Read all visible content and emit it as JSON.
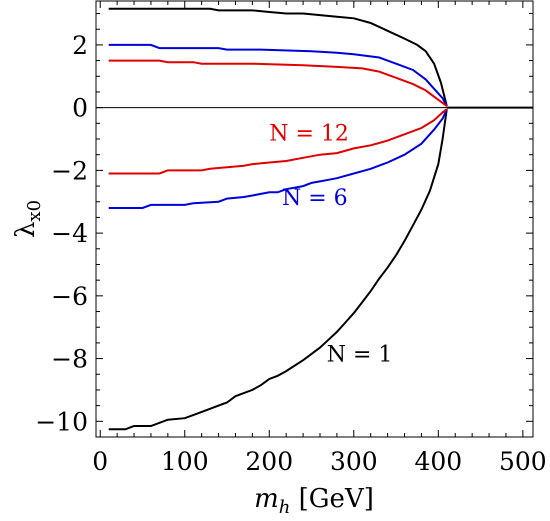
{
  "chart_data": {
    "type": "line",
    "title": "",
    "xlabel": "m_h [GeV]",
    "xlabel_main": "m",
    "xlabel_sub": "h",
    "xlabel_unit": " [GeV]",
    "ylabel": "λ_x0",
    "ylabel_main": "λ",
    "ylabel_sub": "x0",
    "xlim": [
      -5,
      512
    ],
    "ylim": [
      -10.5,
      3.4
    ],
    "x_ticks": [
      0,
      100,
      200,
      300,
      400,
      500
    ],
    "y_ticks": [
      2,
      0,
      -2,
      -4,
      -6,
      -8,
      -10
    ],
    "x_tick_labels": [
      "0",
      "100",
      "200",
      "300",
      "400",
      "500"
    ],
    "y_tick_labels": [
      "2",
      "0",
      "−2",
      "−4",
      "−6",
      "−8",
      "−10"
    ],
    "grid": false,
    "legend": "none",
    "zero_line": true,
    "series": [
      {
        "name": "N = 1",
        "color": "#000000",
        "upper": [
          [
            10,
            3.15
          ],
          [
            30,
            3.15
          ],
          [
            60,
            3.15
          ],
          [
            100,
            3.15
          ],
          [
            130,
            3.15
          ],
          [
            140,
            3.1
          ],
          [
            160,
            3.1
          ],
          [
            180,
            3.1
          ],
          [
            200,
            3.05
          ],
          [
            220,
            3.0
          ],
          [
            240,
            3.0
          ],
          [
            260,
            2.95
          ],
          [
            280,
            2.9
          ],
          [
            300,
            2.85
          ],
          [
            320,
            2.7
          ],
          [
            340,
            2.45
          ],
          [
            360,
            2.2
          ],
          [
            375,
            2.0
          ],
          [
            385,
            1.8
          ],
          [
            395,
            1.4
          ],
          [
            403,
            0.8
          ],
          [
            410,
            0.05
          ]
        ],
        "lower": [
          [
            10,
            -10.25
          ],
          [
            30,
            -10.25
          ],
          [
            40,
            -10.15
          ],
          [
            60,
            -10.15
          ],
          [
            80,
            -9.95
          ],
          [
            100,
            -9.9
          ],
          [
            120,
            -9.7
          ],
          [
            140,
            -9.5
          ],
          [
            150,
            -9.4
          ],
          [
            160,
            -9.2
          ],
          [
            180,
            -9.0
          ],
          [
            190,
            -8.85
          ],
          [
            200,
            -8.65
          ],
          [
            210,
            -8.55
          ],
          [
            220,
            -8.4
          ],
          [
            240,
            -8.05
          ],
          [
            250,
            -7.85
          ],
          [
            260,
            -7.65
          ],
          [
            270,
            -7.4
          ],
          [
            280,
            -7.15
          ],
          [
            290,
            -6.85
          ],
          [
            300,
            -6.55
          ],
          [
            310,
            -6.2
          ],
          [
            320,
            -5.85
          ],
          [
            330,
            -5.45
          ],
          [
            340,
            -5.1
          ],
          [
            350,
            -4.7
          ],
          [
            360,
            -4.25
          ],
          [
            370,
            -3.75
          ],
          [
            380,
            -3.25
          ],
          [
            390,
            -2.65
          ],
          [
            400,
            -1.8
          ],
          [
            405,
            -1.0
          ],
          [
            410,
            -0.05
          ]
        ]
      },
      {
        "name": "N = 6",
        "color": "#0000dd",
        "upper": [
          [
            10,
            2.0
          ],
          [
            60,
            2.0
          ],
          [
            70,
            1.9
          ],
          [
            100,
            1.9
          ],
          [
            140,
            1.9
          ],
          [
            150,
            1.85
          ],
          [
            190,
            1.85
          ],
          [
            250,
            1.8
          ],
          [
            280,
            1.75
          ],
          [
            300,
            1.7
          ],
          [
            330,
            1.6
          ],
          [
            350,
            1.4
          ],
          [
            370,
            1.2
          ],
          [
            385,
            0.9
          ],
          [
            395,
            0.6
          ],
          [
            405,
            0.3
          ],
          [
            410,
            0.05
          ]
        ],
        "lower": [
          [
            10,
            -3.2
          ],
          [
            50,
            -3.2
          ],
          [
            60,
            -3.1
          ],
          [
            100,
            -3.1
          ],
          [
            110,
            -3.05
          ],
          [
            140,
            -3.0
          ],
          [
            150,
            -2.9
          ],
          [
            170,
            -2.85
          ],
          [
            180,
            -2.8
          ],
          [
            200,
            -2.7
          ],
          [
            210,
            -2.7
          ],
          [
            220,
            -2.6
          ],
          [
            240,
            -2.5
          ],
          [
            250,
            -2.4
          ],
          [
            260,
            -2.35
          ],
          [
            270,
            -2.3
          ],
          [
            280,
            -2.25
          ],
          [
            300,
            -2.1
          ],
          [
            320,
            -1.95
          ],
          [
            340,
            -1.75
          ],
          [
            360,
            -1.5
          ],
          [
            380,
            -1.15
          ],
          [
            395,
            -0.7
          ],
          [
            405,
            -0.35
          ],
          [
            410,
            -0.05
          ]
        ]
      },
      {
        "name": "N = 12",
        "color": "#e00000",
        "upper": [
          [
            10,
            1.5
          ],
          [
            70,
            1.5
          ],
          [
            80,
            1.45
          ],
          [
            110,
            1.45
          ],
          [
            120,
            1.4
          ],
          [
            180,
            1.4
          ],
          [
            240,
            1.35
          ],
          [
            280,
            1.3
          ],
          [
            310,
            1.25
          ],
          [
            330,
            1.15
          ],
          [
            350,
            0.95
          ],
          [
            370,
            0.75
          ],
          [
            385,
            0.55
          ],
          [
            395,
            0.35
          ],
          [
            405,
            0.15
          ],
          [
            410,
            0.05
          ]
        ],
        "lower": [
          [
            10,
            -2.1
          ],
          [
            70,
            -2.1
          ],
          [
            80,
            -2.0
          ],
          [
            120,
            -2.0
          ],
          [
            130,
            -1.95
          ],
          [
            150,
            -1.9
          ],
          [
            170,
            -1.85
          ],
          [
            180,
            -1.8
          ],
          [
            200,
            -1.75
          ],
          [
            220,
            -1.7
          ],
          [
            240,
            -1.6
          ],
          [
            260,
            -1.5
          ],
          [
            280,
            -1.45
          ],
          [
            300,
            -1.3
          ],
          [
            320,
            -1.2
          ],
          [
            340,
            -1.05
          ],
          [
            360,
            -0.85
          ],
          [
            380,
            -0.65
          ],
          [
            395,
            -0.4
          ],
          [
            405,
            -0.15
          ],
          [
            410,
            -0.05
          ]
        ]
      }
    ],
    "flat_tail": [
      [
        410,
        0.0
      ],
      [
        512,
        0.0
      ]
    ],
    "annotations": [
      {
        "id": "n12",
        "text": "N = 12",
        "color": "#e00000",
        "x": 200,
        "y": -1.05
      },
      {
        "id": "n6",
        "text": "N = 6",
        "color": "#0000dd",
        "x": 215,
        "y": -3.1
      },
      {
        "id": "n1",
        "text": "N = 1",
        "color": "#000000",
        "x": 268,
        "y": -8.1
      }
    ]
  }
}
